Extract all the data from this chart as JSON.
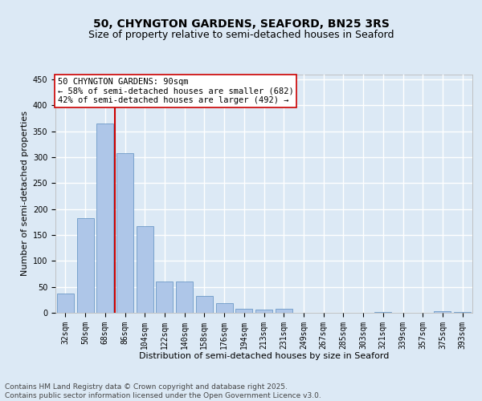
{
  "title_line1": "50, CHYNGTON GARDENS, SEAFORD, BN25 3RS",
  "title_line2": "Size of property relative to semi-detached houses in Seaford",
  "xlabel": "Distribution of semi-detached houses by size in Seaford",
  "ylabel": "Number of semi-detached properties",
  "categories": [
    "32sqm",
    "50sqm",
    "68sqm",
    "86sqm",
    "104sqm",
    "122sqm",
    "140sqm",
    "158sqm",
    "176sqm",
    "194sqm",
    "213sqm",
    "231sqm",
    "249sqm",
    "267sqm",
    "285sqm",
    "303sqm",
    "321sqm",
    "339sqm",
    "357sqm",
    "375sqm",
    "393sqm"
  ],
  "values": [
    37,
    183,
    365,
    307,
    167,
    61,
    61,
    33,
    18,
    8,
    6,
    8,
    0,
    0,
    0,
    0,
    2,
    0,
    0,
    3,
    2
  ],
  "bar_color": "#aec6e8",
  "bar_edge_color": "#5b8dc0",
  "property_bin_index": 3,
  "vline_color": "#cc0000",
  "annotation_title": "50 CHYNGTON GARDENS: 90sqm",
  "annotation_line1": "← 58% of semi-detached houses are smaller (682)",
  "annotation_line2": "42% of semi-detached houses are larger (492) →",
  "annotation_box_color": "#ffffff",
  "annotation_box_edge": "#cc0000",
  "ylim": [
    0,
    460
  ],
  "yticks": [
    0,
    50,
    100,
    150,
    200,
    250,
    300,
    350,
    400,
    450
  ],
  "footer_line1": "Contains HM Land Registry data © Crown copyright and database right 2025.",
  "footer_line2": "Contains public sector information licensed under the Open Government Licence v3.0.",
  "background_color": "#dce9f5",
  "plot_bg_color": "#dce9f5",
  "grid_color": "#ffffff",
  "title_fontsize": 10,
  "subtitle_fontsize": 9,
  "axis_label_fontsize": 8,
  "tick_fontsize": 7,
  "annotation_fontsize": 7.5,
  "footer_fontsize": 6.5
}
